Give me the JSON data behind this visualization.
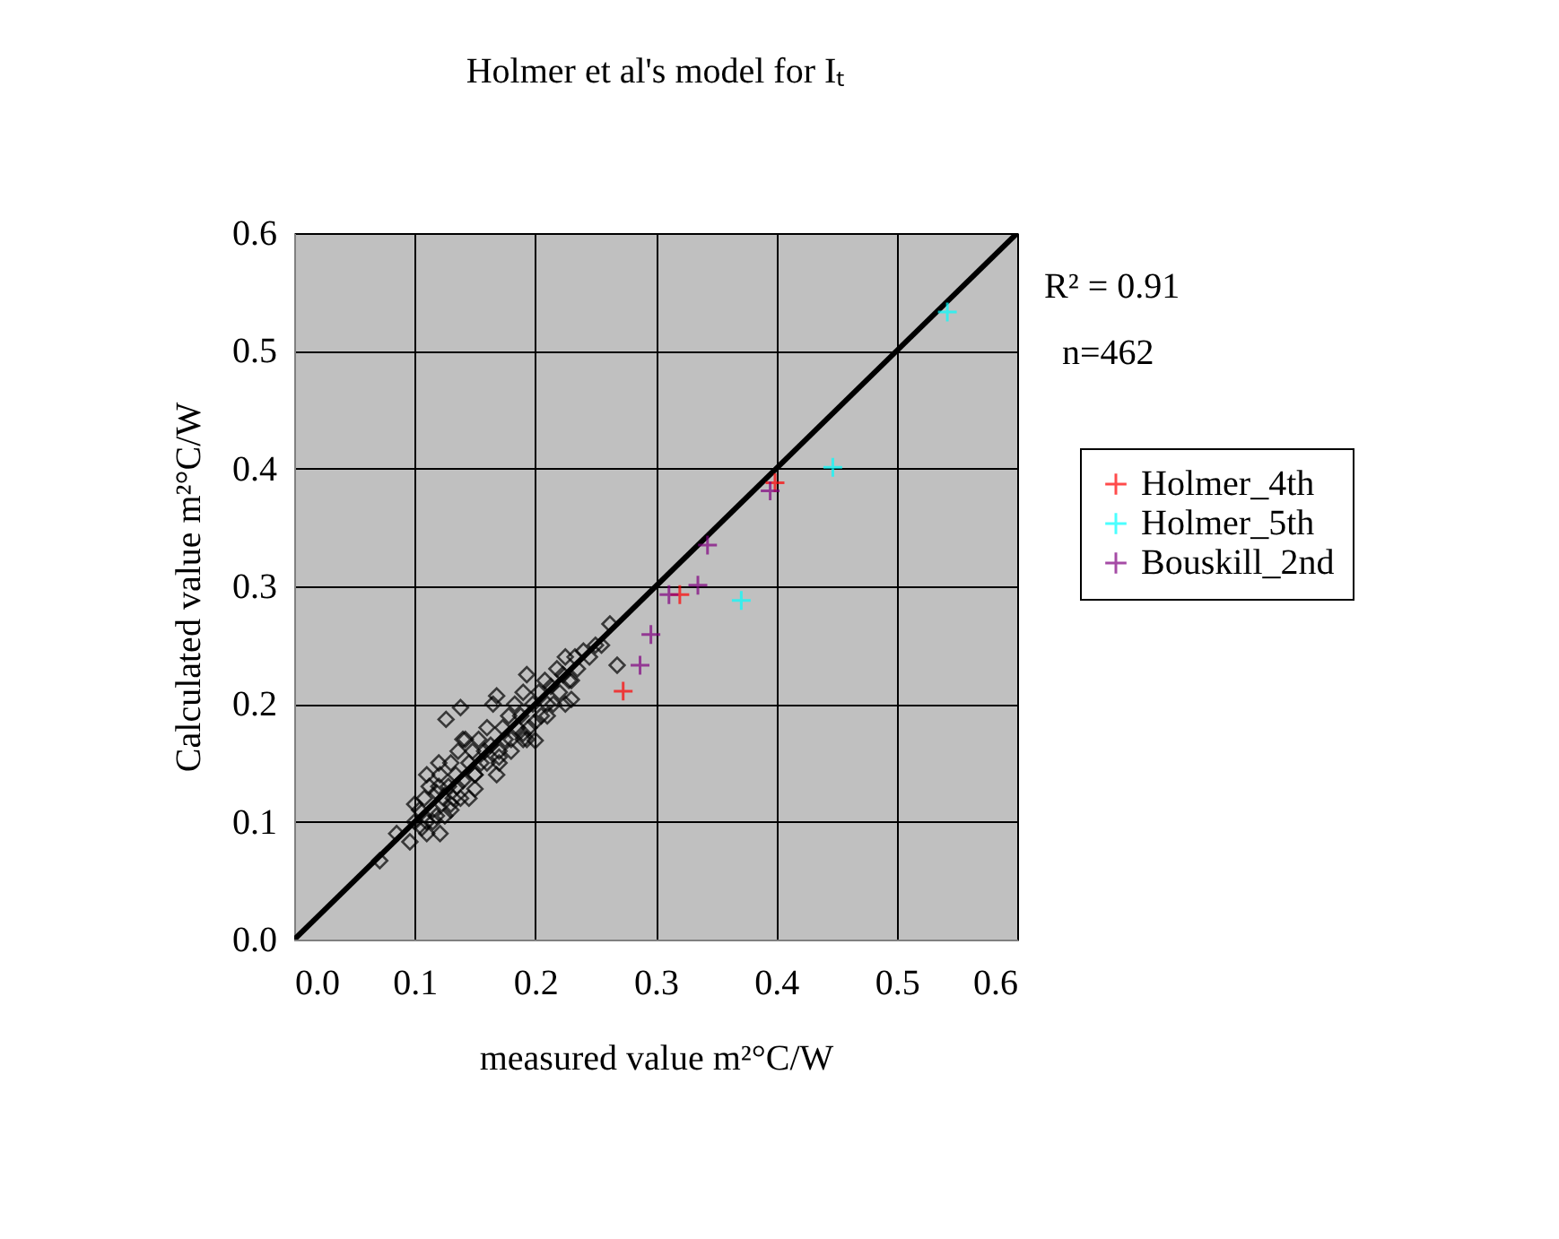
{
  "chart_data": {
    "type": "scatter",
    "title": "Holmer et al's model for Iₜ",
    "xlabel": "measured value m²°C/W",
    "ylabel": "Calculated value m²°C/W",
    "xlim": [
      0,
      0.6
    ],
    "ylim": [
      0,
      0.6
    ],
    "xticks": [
      {
        "value": 0,
        "label": "0.0"
      },
      0.1,
      0.2,
      0.3,
      0.4,
      0.5,
      0.6
    ],
    "yticks": [
      {
        "value": 0,
        "label": "0.0"
      },
      0.1,
      0.2,
      0.3,
      0.4,
      0.5,
      0.6
    ],
    "grid": true,
    "legend": "right",
    "annotations": [
      "R² = 0.91",
      "n=462"
    ],
    "series": [
      {
        "type": "line",
        "color": "#000000",
        "marker": "none",
        "x": [
          0,
          0.6
        ],
        "values": [
          0,
          0.6
        ]
      },
      {
        "color": "#000000",
        "marker": "diamond",
        "x": [
          0.071,
          0.085,
          0.096,
          0.1,
          0.104,
          0.106,
          0.108,
          0.11,
          0.112,
          0.115,
          0.118,
          0.121,
          0.121,
          0.124,
          0.126,
          0.128,
          0.13,
          0.132,
          0.134,
          0.136,
          0.138,
          0.14,
          0.142,
          0.145,
          0.148,
          0.15,
          0.153,
          0.155,
          0.158,
          0.16,
          0.163,
          0.165,
          0.168,
          0.17,
          0.173,
          0.175,
          0.178,
          0.18,
          0.183,
          0.185,
          0.188,
          0.19,
          0.193,
          0.195,
          0.198,
          0.2,
          0.203,
          0.205,
          0.208,
          0.21,
          0.213,
          0.215,
          0.218,
          0.22,
          0.223,
          0.225,
          0.228,
          0.23,
          0.233,
          0.235,
          0.24,
          0.245,
          0.25,
          0.255,
          0.262,
          0.268,
          0.11,
          0.115,
          0.12,
          0.125,
          0.13,
          0.135,
          0.14,
          0.145,
          0.15,
          0.16,
          0.17,
          0.18,
          0.19,
          0.2,
          0.11,
          0.13,
          0.15,
          0.17,
          0.19,
          0.21,
          0.12,
          0.138,
          0.168,
          0.193,
          0.225,
          0.23,
          0.1,
          0.118
        ],
        "values": [
          0.067,
          0.09,
          0.083,
          0.1,
          0.11,
          0.095,
          0.12,
          0.1,
          0.13,
          0.11,
          0.125,
          0.09,
          0.14,
          0.12,
          0.187,
          0.13,
          0.15,
          0.12,
          0.14,
          0.16,
          0.197,
          0.135,
          0.17,
          0.15,
          0.16,
          0.128,
          0.17,
          0.15,
          0.16,
          0.18,
          0.165,
          0.2,
          0.207,
          0.15,
          0.18,
          0.17,
          0.19,
          0.16,
          0.2,
          0.18,
          0.19,
          0.21,
          0.225,
          0.18,
          0.2,
          0.169,
          0.21,
          0.19,
          0.22,
          0.2,
          0.215,
          0.2,
          0.23,
          0.21,
          0.225,
          0.24,
          0.22,
          0.204,
          0.24,
          0.23,
          0.245,
          0.24,
          0.25,
          0.25,
          0.268,
          0.233,
          0.14,
          0.1,
          0.13,
          0.105,
          0.11,
          0.13,
          0.17,
          0.12,
          0.14,
          0.15,
          0.16,
          0.17,
          0.175,
          0.185,
          0.09,
          0.115,
          0.14,
          0.155,
          0.17,
          0.19,
          0.15,
          0.12,
          0.14,
          0.17,
          0.2,
          0.22,
          0.115,
          0.105
        ]
      },
      {
        "name": "Holmer_4th",
        "color": "#ff0000",
        "marker": "cross",
        "x": [
          0.273,
          0.32,
          0.399
        ],
        "values": [
          0.211,
          0.293,
          0.388
        ]
      },
      {
        "name": "Holmer_5th",
        "color": "#00ffff",
        "marker": "cross",
        "x": [
          0.371,
          0.447,
          0.542
        ],
        "values": [
          0.288,
          0.401,
          0.533
        ]
      },
      {
        "name": "Bouskill_2nd",
        "color": "#800080",
        "marker": "cross",
        "x": [
          0.287,
          0.296,
          0.311,
          0.335,
          0.343,
          0.395
        ],
        "values": [
          0.233,
          0.259,
          0.293,
          0.301,
          0.335,
          0.381
        ]
      }
    ]
  }
}
